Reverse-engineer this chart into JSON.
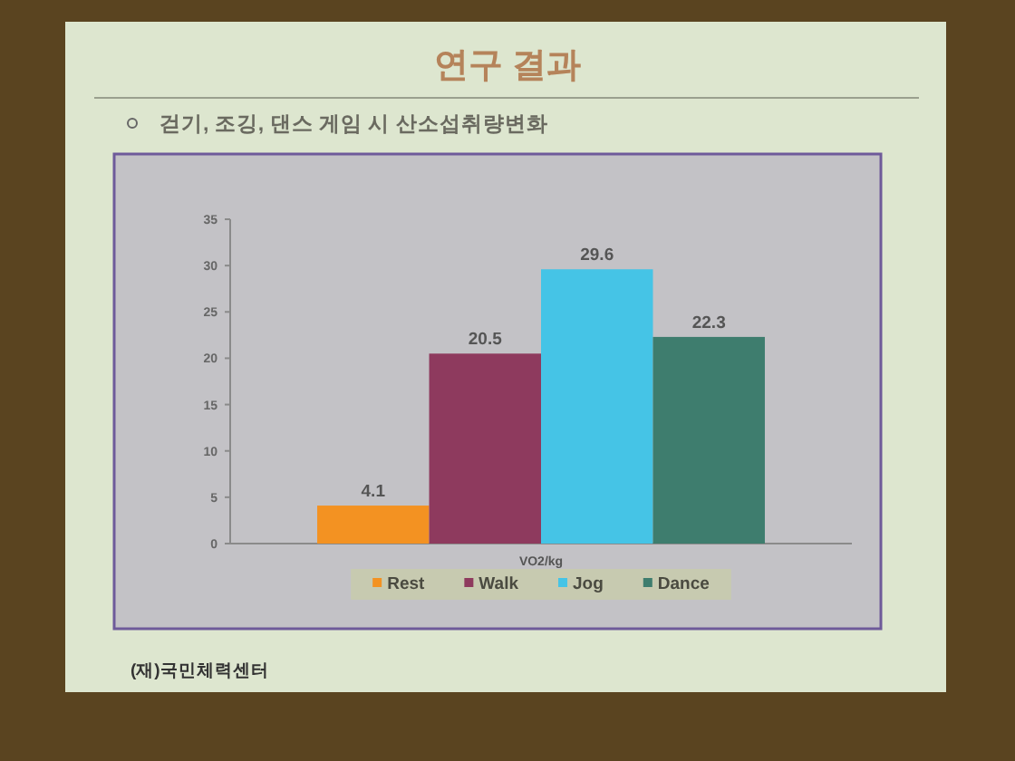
{
  "chart_data": {
    "type": "bar",
    "title": "연구 결과",
    "subtitle": "걷기, 조깅, 댄스 게임 시 산소섭취량변화",
    "categories": [
      "VO2/kg"
    ],
    "series": [
      {
        "name": "Rest",
        "color": "#f39222",
        "values": [
          4.1
        ]
      },
      {
        "name": "Walk",
        "color": "#8e3a5e",
        "values": [
          20.5
        ]
      },
      {
        "name": "Jog",
        "color": "#45c4e6",
        "values": [
          29.6
        ]
      },
      {
        "name": "Dance",
        "color": "#3e7d6e",
        "values": [
          22.3
        ]
      }
    ],
    "ylim": [
      0,
      35
    ],
    "yticks": [
      0,
      5,
      10,
      15,
      20,
      25,
      30,
      35
    ],
    "data_labels": true,
    "legend": "bottom",
    "annotations": [
      "(재)국민체력센터"
    ]
  }
}
